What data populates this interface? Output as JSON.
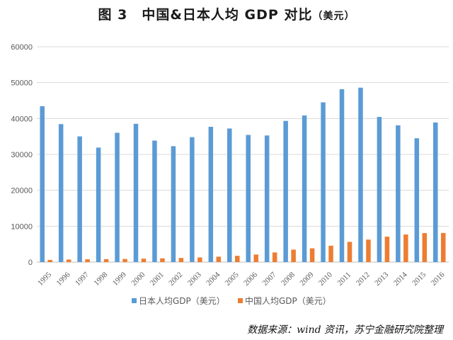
{
  "title": "图 3　中国&日本人均 GDP 对比",
  "title_unit": "（美元）",
  "source": "数据来源：wind 资讯，苏宁金融研究院整理",
  "colors": {
    "japan": "#5B9BD5",
    "china": "#ED7D31",
    "grid": "#D9D9D9",
    "text": "#595959"
  },
  "chart_data": {
    "type": "bar",
    "categories": [
      "1995",
      "1996",
      "1997",
      "1998",
      "1999",
      "2000",
      "2001",
      "2002",
      "2003",
      "2004",
      "2005",
      "2006",
      "2007",
      "2008",
      "2009",
      "2010",
      "2011",
      "2012",
      "2013",
      "2014",
      "2015",
      "2016"
    ],
    "series": [
      {
        "name": "日本人均GDP（美元）",
        "values": [
          43440,
          38440,
          35020,
          31900,
          36030,
          38530,
          33850,
          32290,
          34810,
          37690,
          37220,
          35430,
          35280,
          39340,
          40860,
          44510,
          48170,
          48600,
          40450,
          38100,
          34500,
          38900
        ]
      },
      {
        "name": "中国人均GDP（美元）",
        "values": [
          610,
          710,
          780,
          830,
          870,
          960,
          1050,
          1150,
          1290,
          1510,
          1750,
          2100,
          2690,
          3470,
          3830,
          4560,
          5630,
          6260,
          7080,
          7680,
          8070,
          8120
        ]
      }
    ],
    "ylim": [
      0,
      60000
    ],
    "yticks": [
      0,
      10000,
      20000,
      30000,
      40000,
      50000,
      60000
    ],
    "grid": true,
    "legend": "bottom"
  }
}
